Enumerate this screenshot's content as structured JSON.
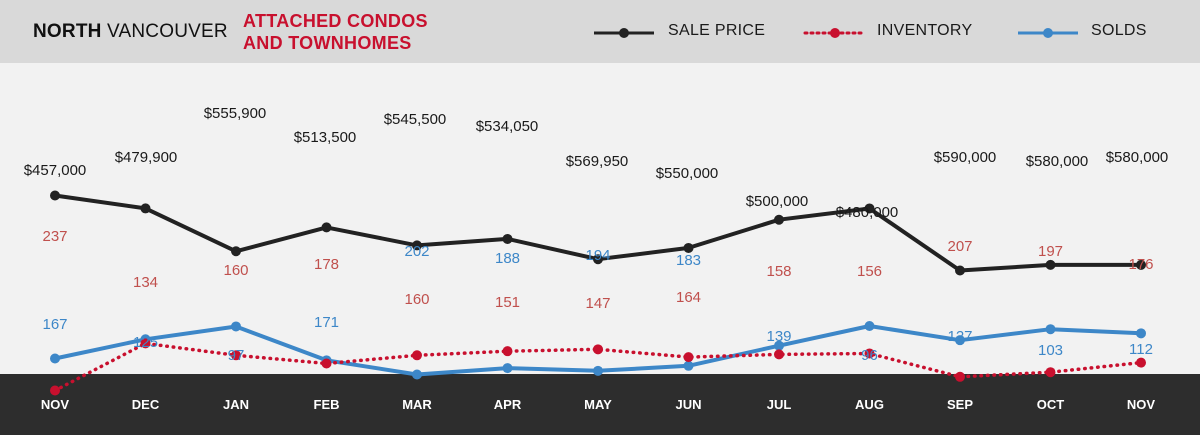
{
  "header": {
    "region_bold": "NORTH",
    "region_light": "VANCOUVER",
    "subtitle_line1": "ATTACHED CONDOS",
    "subtitle_line2": "AND TOWNHOMES"
  },
  "legend": [
    {
      "label": "SALE PRICE",
      "color": "#222222",
      "style": "solid"
    },
    {
      "label": "INVENTORY",
      "color": "#c8102e",
      "style": "dotted"
    },
    {
      "label": "SOLDS",
      "color": "#3d87c8",
      "style": "solid"
    }
  ],
  "colors": {
    "header_bg": "#d9d9d9",
    "plot_bg": "#f2f2f2",
    "footer_bg": "#2d2d2d",
    "sale_price": "#222222",
    "inventory": "#c8102e",
    "inventory_label": "#c0504d",
    "solds": "#3d87c8"
  },
  "chart_data": {
    "type": "line",
    "categories": [
      "NOV",
      "DEC",
      "JAN",
      "FEB",
      "MAR",
      "APR",
      "MAY",
      "JUN",
      "JUL",
      "AUG",
      "SEP",
      "OCT",
      "NOV"
    ],
    "series": [
      {
        "name": "SALE PRICE",
        "values": [
          457000,
          479900,
          555900,
          513500,
          545500,
          534050,
          569950,
          550000,
          500000,
          480000,
          590000,
          580000,
          580000
        ],
        "labels": [
          "$457,000",
          "$479,900",
          "$555,900",
          "$513,500",
          "$545,500",
          "$534,050",
          "$569,950",
          "$550,000",
          "$500,000",
          "$480,000",
          "$590,000",
          "$580,000",
          "$580,000"
        ]
      },
      {
        "name": "INVENTORY",
        "values": [
          237,
          134,
          160,
          178,
          160,
          151,
          147,
          164,
          158,
          156,
          207,
          197,
          176
        ],
        "labels": [
          "237",
          "134",
          "160",
          "178",
          "160",
          "151",
          "147",
          "164",
          "158",
          "156",
          "207",
          "197",
          "176"
        ]
      },
      {
        "name": "SOLDS",
        "values": [
          167,
          125,
          97,
          171,
          202,
          188,
          194,
          183,
          139,
          96,
          127,
          103,
          112
        ],
        "labels": [
          "167",
          "125",
          "97",
          "171",
          "202",
          "188",
          "194",
          "183",
          "139",
          "96",
          "127",
          "103",
          "112"
        ]
      }
    ],
    "title": "",
    "xlabel": "",
    "ylabel": "",
    "grid": false,
    "legend_position": "top-right"
  }
}
